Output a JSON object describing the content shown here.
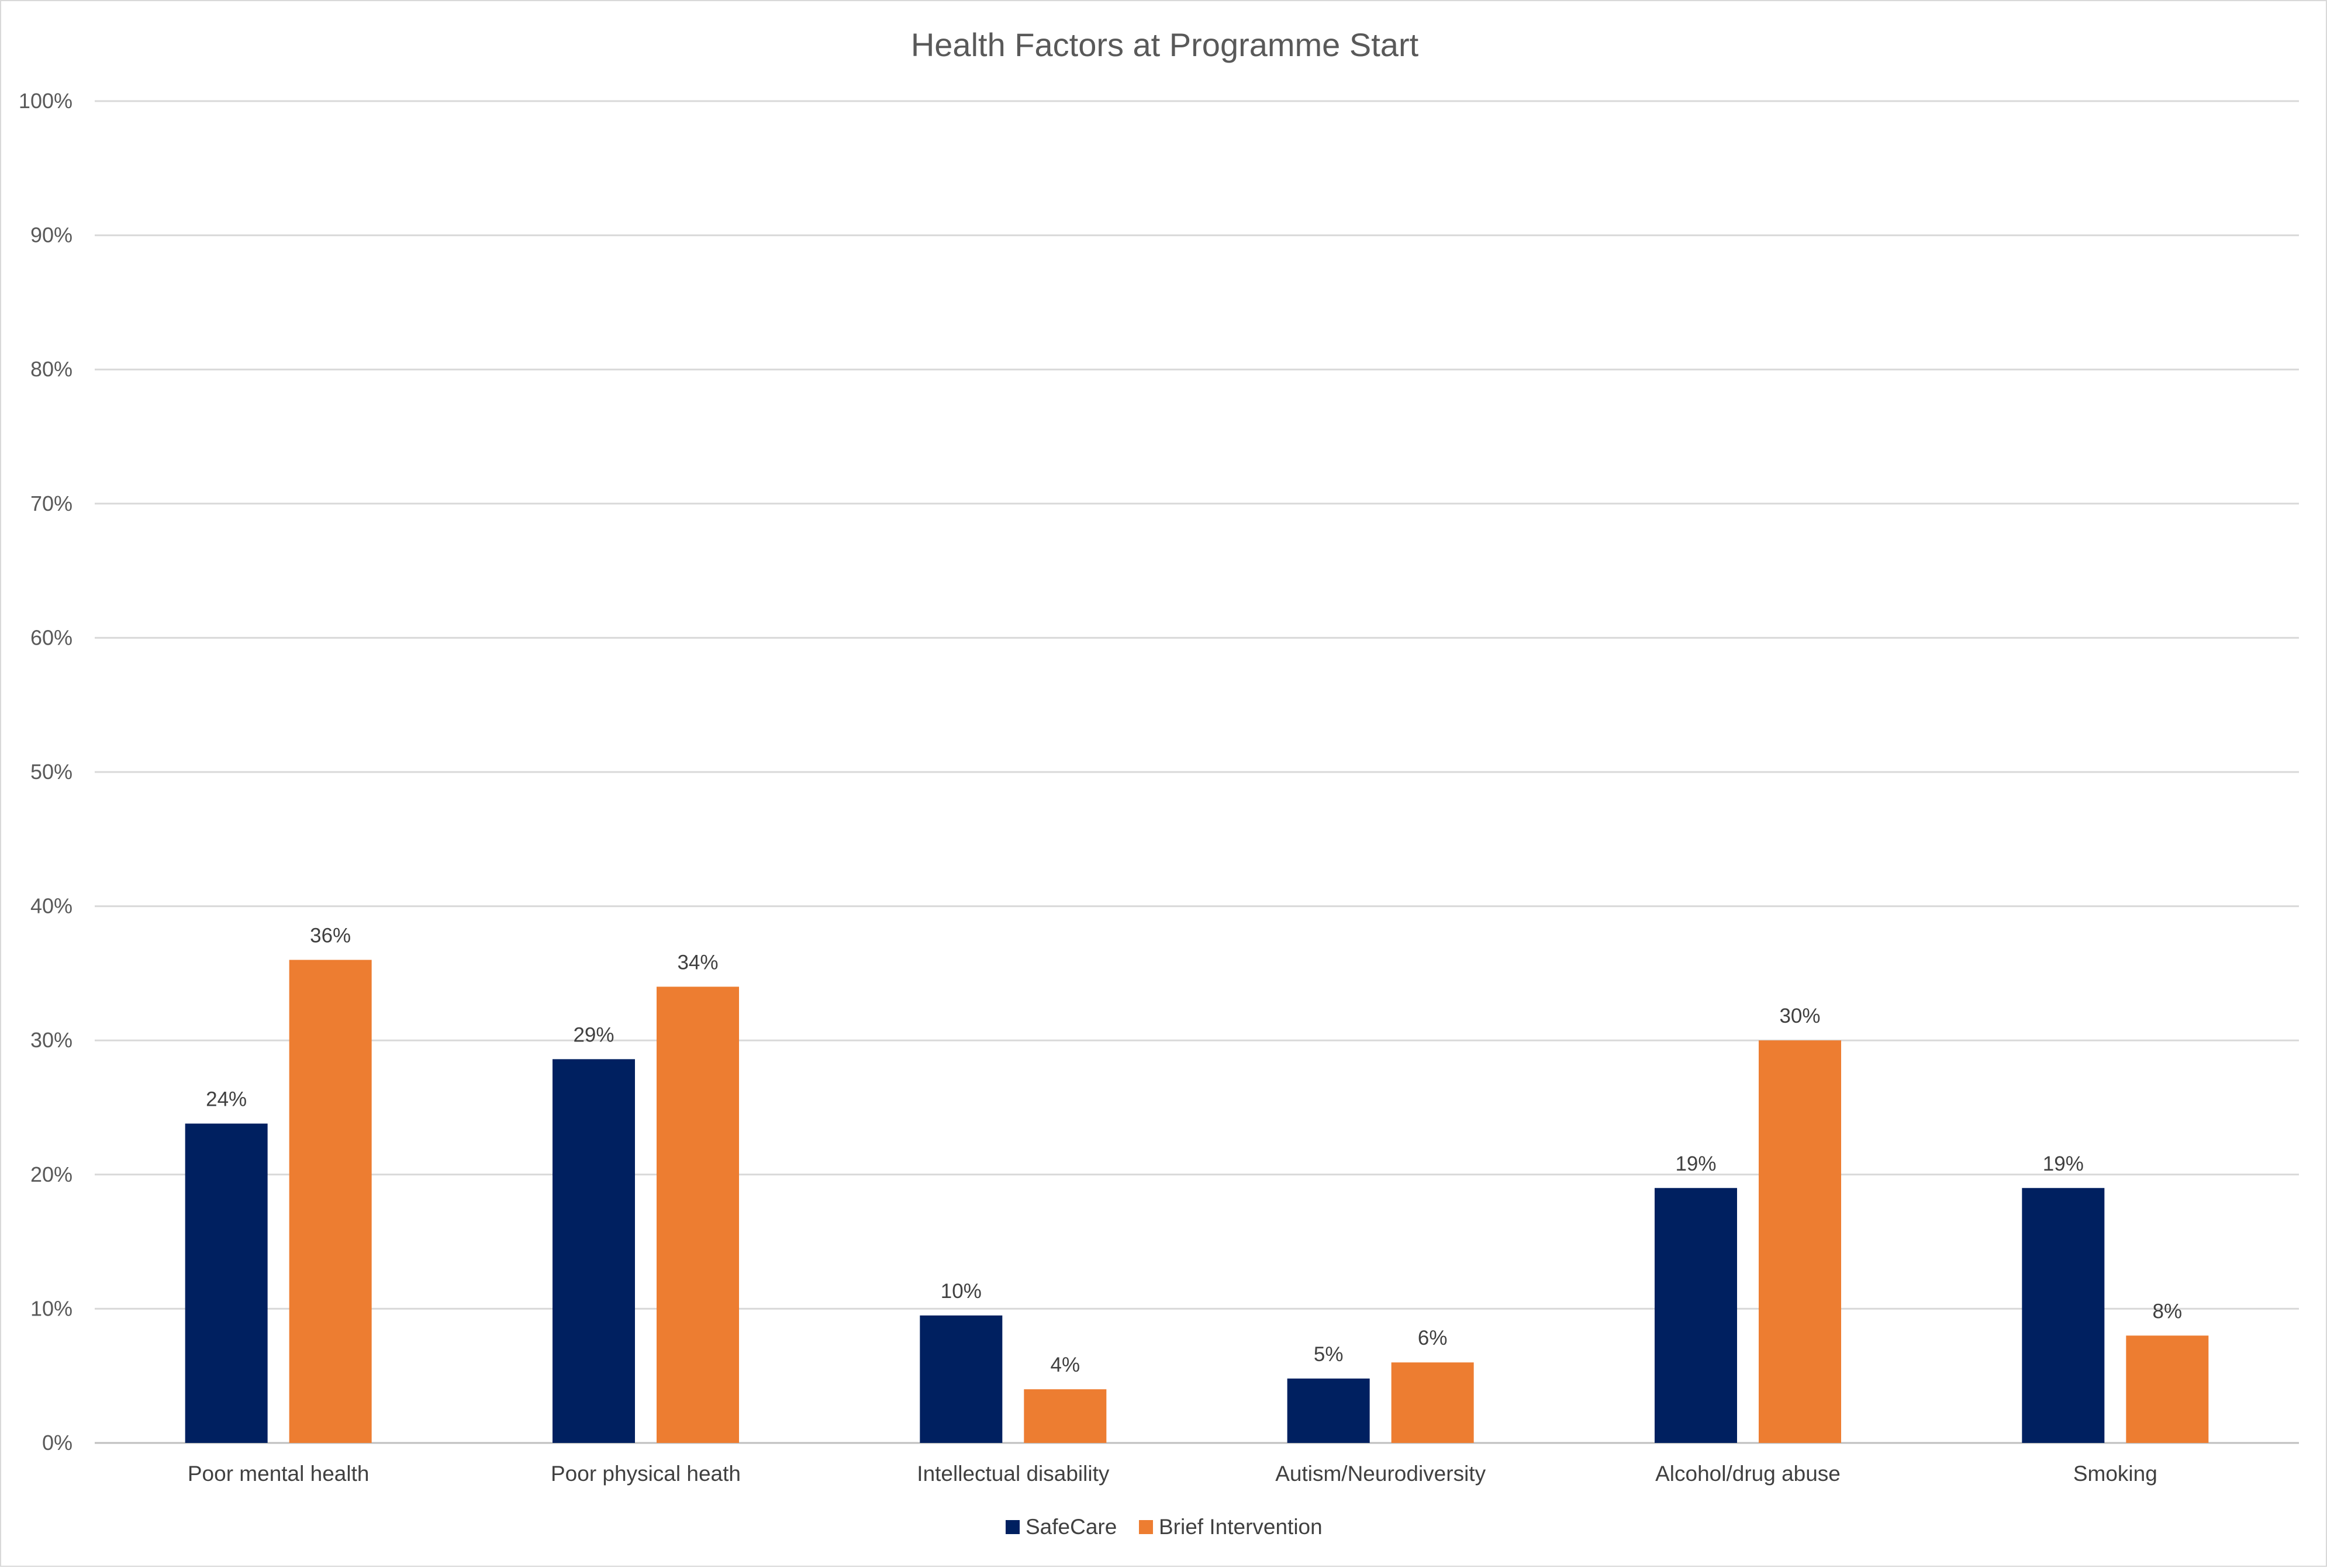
{
  "chart_data": {
    "type": "bar",
    "title": "Health Factors at Programme Start",
    "xlabel": "",
    "ylabel": "",
    "ylim": [
      0,
      100
    ],
    "yticks": [
      0,
      10,
      20,
      30,
      40,
      50,
      60,
      70,
      80,
      90,
      100
    ],
    "ytick_suffix": "%",
    "grid": true,
    "legend_position": "bottom",
    "categories": [
      "Poor mental health",
      "Poor physical heath",
      "Intellectual disability",
      "Autism/Neurodiversity",
      "Alcohol/drug abuse",
      "Smoking"
    ],
    "series": [
      {
        "name": "SafeCare",
        "color": "#002060",
        "values": [
          23.8,
          28.6,
          9.5,
          4.8,
          19.0,
          19.0
        ],
        "labels": [
          "24%",
          "29%",
          "10%",
          "5%",
          "19%",
          "19%"
        ]
      },
      {
        "name": "Brief Intervention",
        "color": "#ED7D31",
        "values": [
          36,
          34,
          4,
          6,
          30,
          8
        ],
        "labels": [
          "36%",
          "34%",
          "4%",
          "6%",
          "30%",
          "8%"
        ]
      }
    ]
  }
}
